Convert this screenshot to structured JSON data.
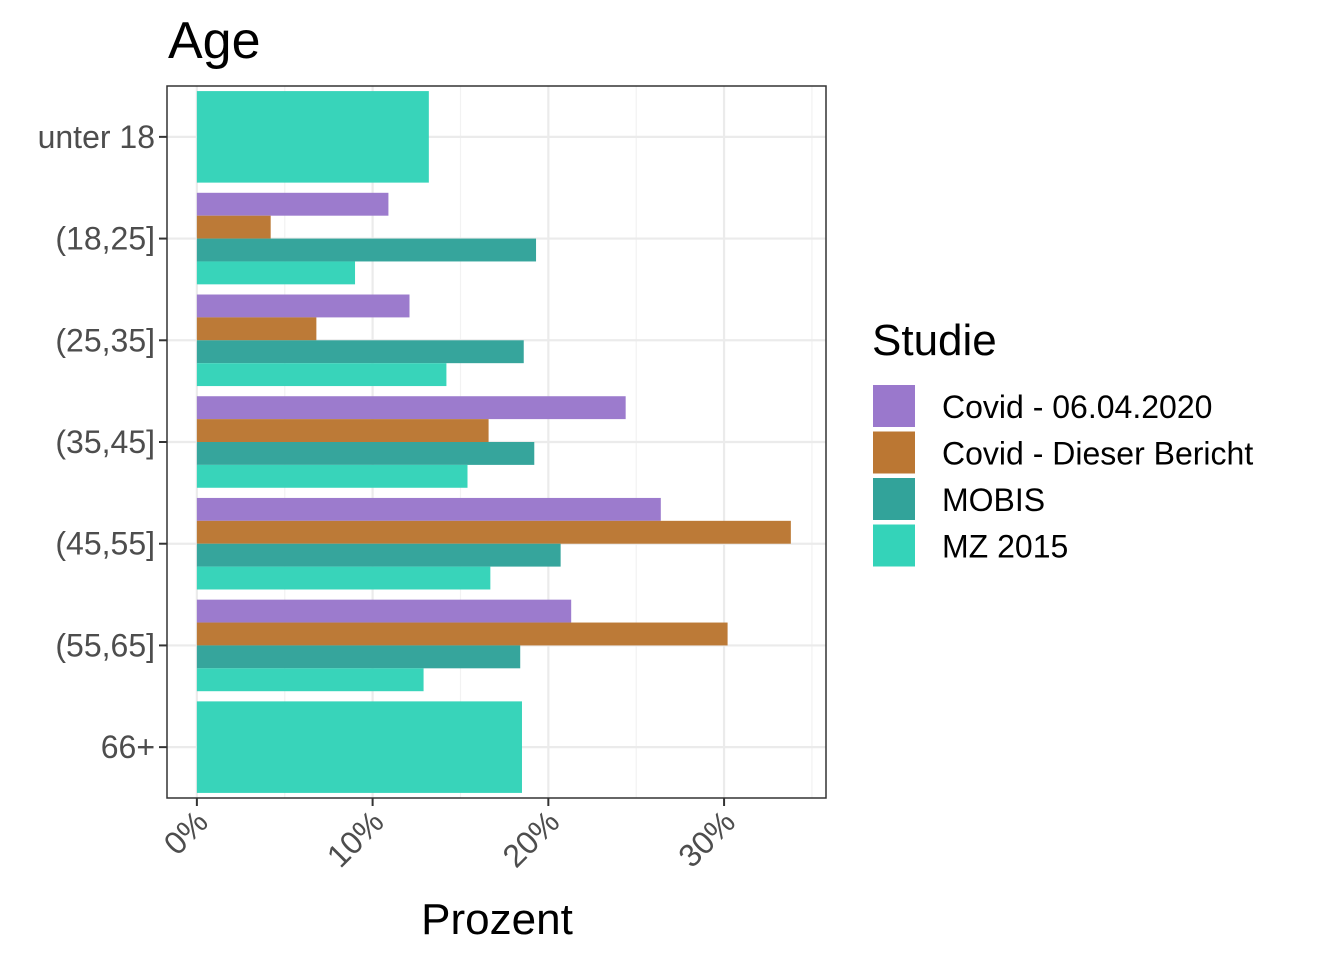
{
  "chart_data": {
    "type": "bar",
    "orientation": "horizontal",
    "title": "Age",
    "xlabel": "Prozent",
    "ylabel": "",
    "categories": [
      "unter 18",
      "(18,25]",
      "(25,35]",
      "(35,45]",
      "(45,55]",
      "(55,65]",
      "66+"
    ],
    "x_ticks": [
      "0%",
      "10%",
      "20%",
      "30%"
    ],
    "xlim": [
      -1.7,
      35.8
    ],
    "grid": true,
    "legend": {
      "title": "Studie",
      "placement": "right"
    },
    "series": [
      {
        "name": "Covid - 06.04.2020",
        "color": "#9a78cc",
        "values": [
          null,
          10.9,
          12.1,
          24.4,
          26.4,
          21.3,
          null
        ]
      },
      {
        "name": "Covid - Dieser Bericht",
        "color": "#bb7733",
        "values": [
          null,
          4.2,
          6.8,
          16.6,
          33.8,
          30.2,
          null
        ]
      },
      {
        "name": "MOBIS",
        "color": "#32a39a",
        "values": [
          null,
          19.3,
          18.6,
          19.2,
          20.7,
          18.4,
          null
        ]
      },
      {
        "name": "MZ 2015",
        "color": "#34d3b9",
        "values": [
          13.2,
          9.0,
          14.2,
          15.4,
          16.7,
          12.9,
          18.5
        ]
      }
    ]
  }
}
